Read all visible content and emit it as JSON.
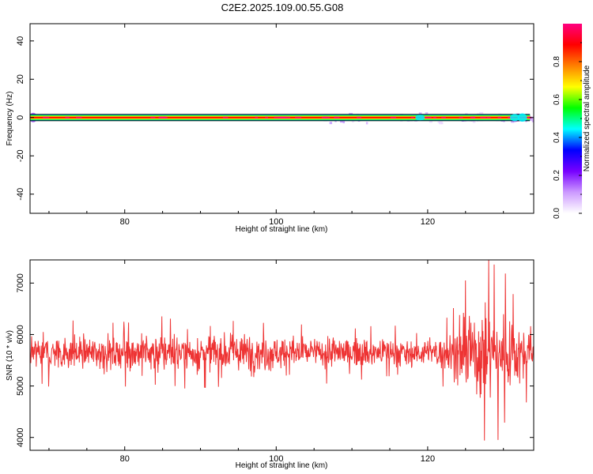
{
  "title": "C2E2.2025.109.00.55.G08",
  "chart_data": [
    {
      "type": "heatmap",
      "xlabel": "Height of straight line (km)",
      "ylabel": "Frequency (Hz)",
      "xlim": [
        67.5,
        134
      ],
      "ylim": [
        -50,
        49
      ],
      "xticks": [
        80,
        100,
        120
      ],
      "yticks": [
        40,
        20,
        0,
        -20,
        -40
      ],
      "colorbar": {
        "label": "Normalized spectral amplitude",
        "range": [
          0,
          1
        ],
        "ticks": [
          "0.0",
          "0.2",
          "0.4",
          "0.6",
          "0.8"
        ],
        "colormap": [
          "#ffffff",
          "#cc99ff",
          "#7700ff",
          "#0000ff",
          "#00ffff",
          "#00ff00",
          "#ffff00",
          "#ff8000",
          "#ff0000",
          "#ff0080"
        ]
      },
      "ridge": {
        "frequency": 0,
        "x_range": [
          67.5,
          133.5
        ],
        "peak_amplitude": 1.0,
        "scatter_regions_km": [
          [
            106,
            112
          ],
          [
            116,
            122
          ],
          [
            124,
            127
          ],
          [
            129,
            134
          ]
        ]
      }
    },
    {
      "type": "line",
      "xlabel": "Height of straight line (km)",
      "ylabel": "SNR (10 * v/v)",
      "xlim": [
        67.5,
        134
      ],
      "ylim": [
        3750,
        7450
      ],
      "xticks": [
        80,
        100,
        120
      ],
      "yticks": [
        7000,
        6000,
        5000,
        4000
      ],
      "series": [
        {
          "color": "#ee3333",
          "mean": 5650,
          "envelope": [
            {
              "x": 67.5,
              "min": 5000,
              "max": 6250
            },
            {
              "x": 80,
              "min": 4950,
              "max": 6300
            },
            {
              "x": 86,
              "min": 4850,
              "max": 6450
            },
            {
              "x": 95,
              "min": 4750,
              "max": 6250
            },
            {
              "x": 110,
              "min": 5050,
              "max": 6150
            },
            {
              "x": 120,
              "min": 5150,
              "max": 6200
            },
            {
              "x": 123,
              "min": 4900,
              "max": 6600
            },
            {
              "x": 125,
              "min": 3900,
              "max": 7300
            },
            {
              "x": 128,
              "min": 3800,
              "max": 7450
            },
            {
              "x": 131,
              "min": 4150,
              "max": 7100
            },
            {
              "x": 134,
              "min": 4800,
              "max": 6400
            }
          ]
        }
      ]
    }
  ]
}
